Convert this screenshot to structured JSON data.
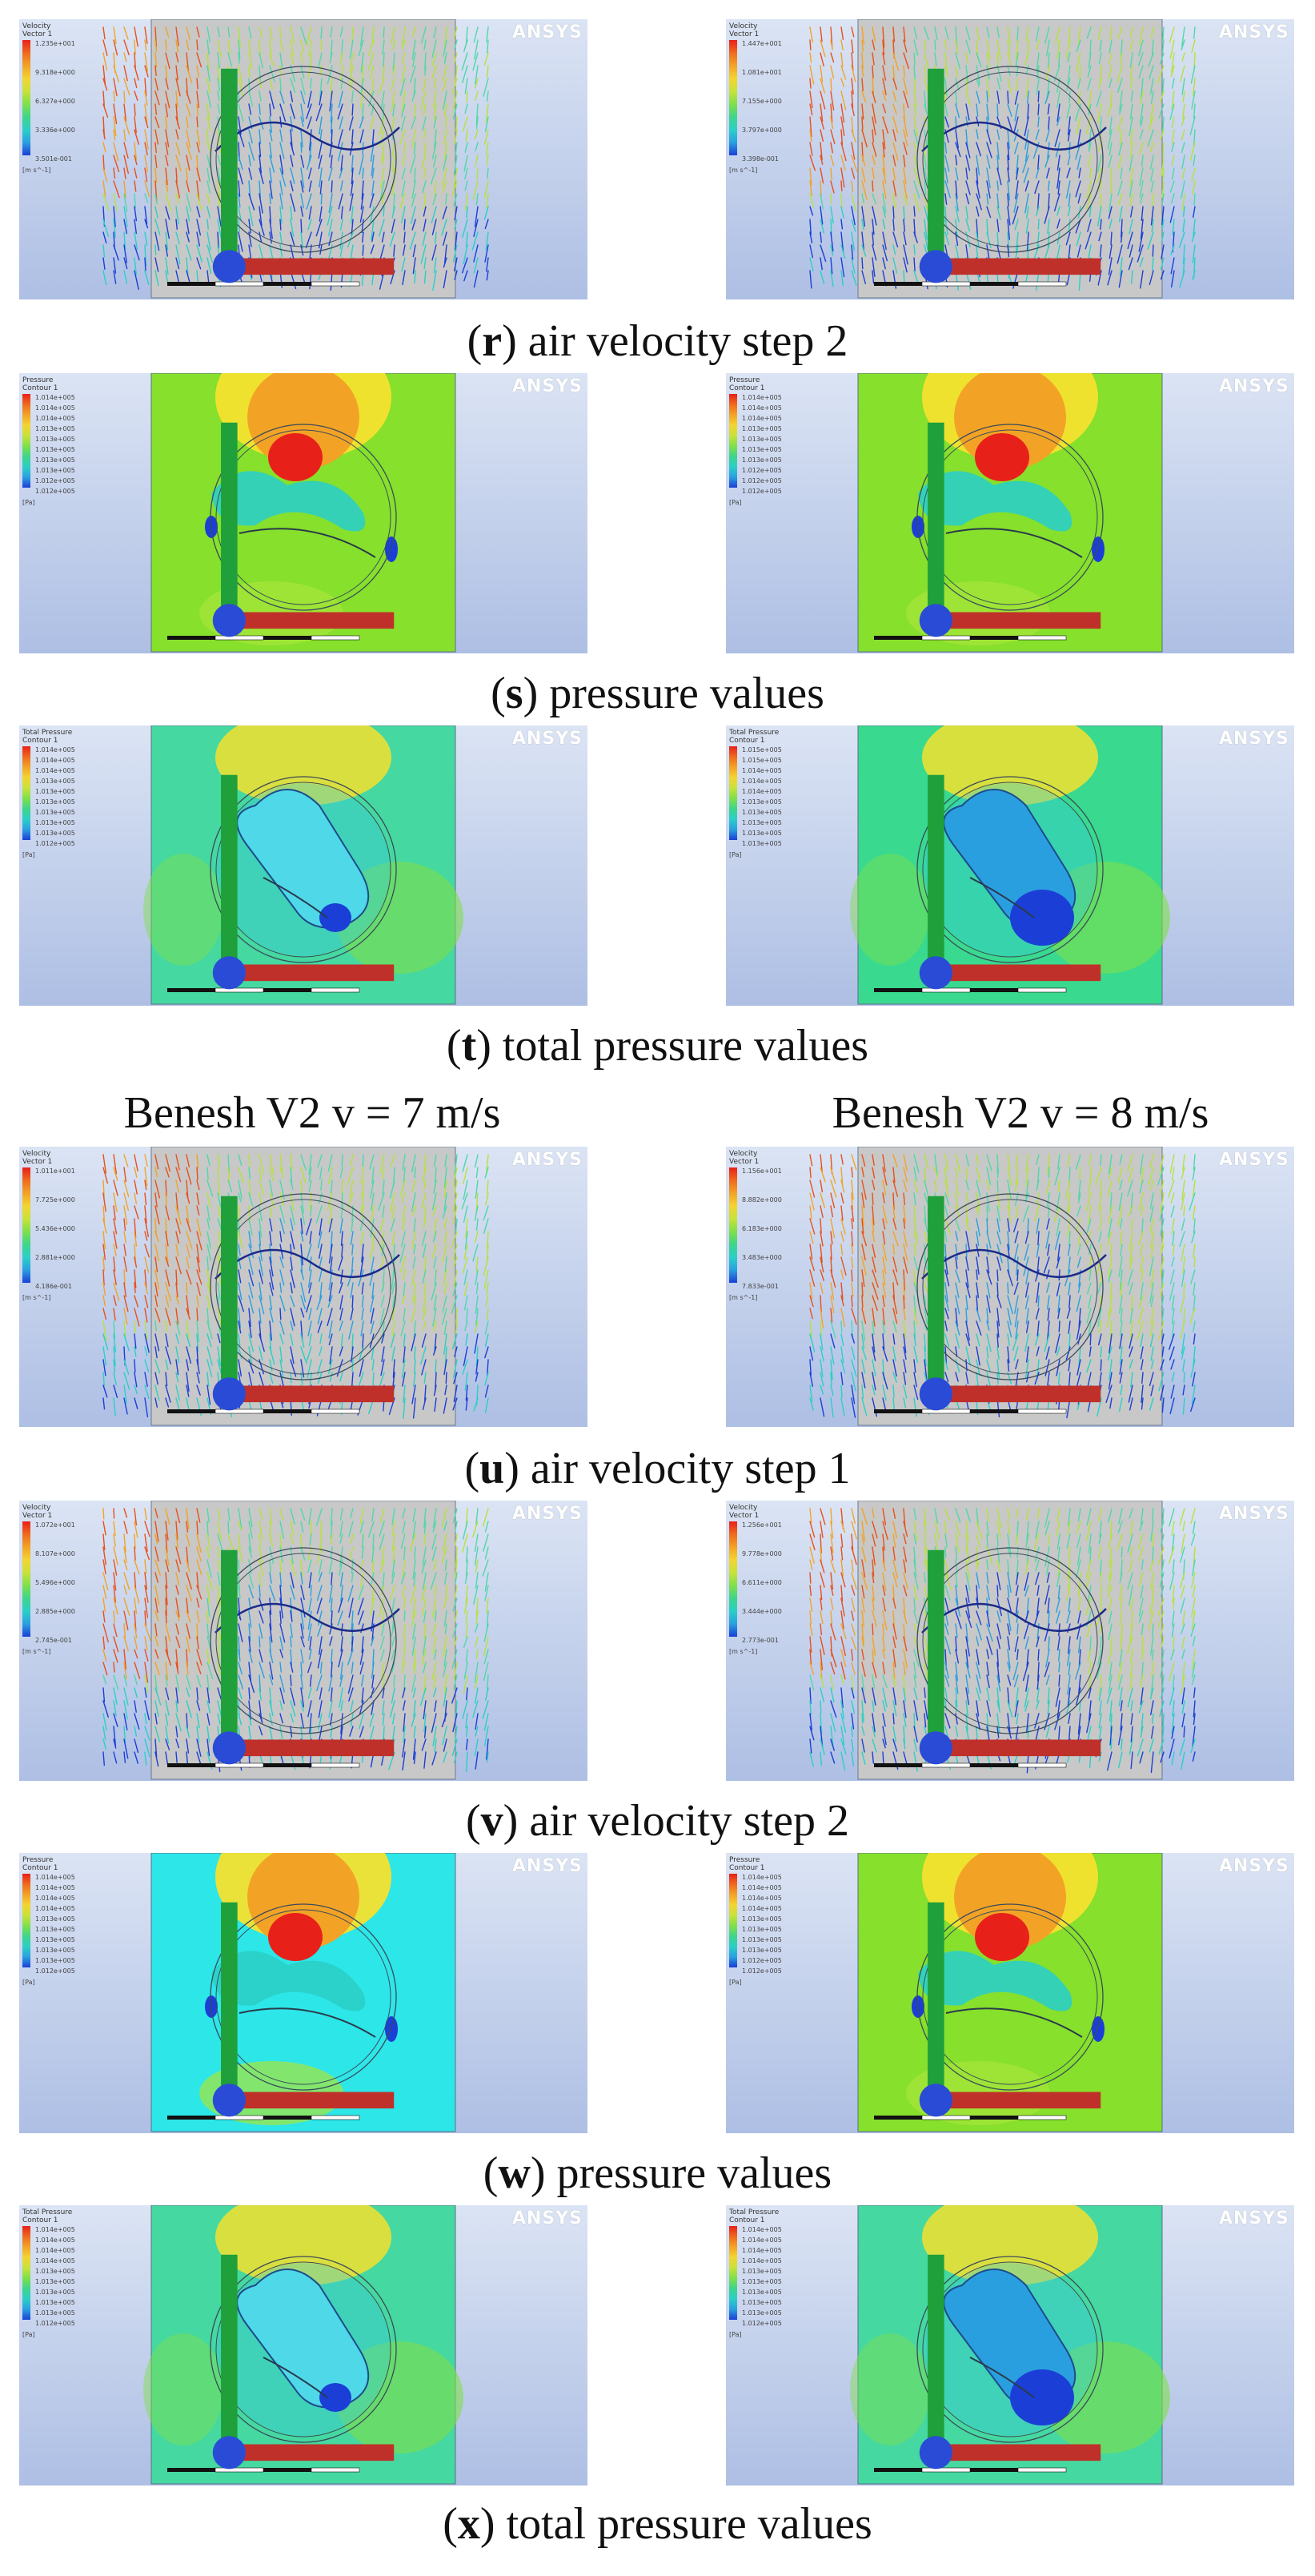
{
  "brand": "ANSYS",
  "case_titles": {
    "left": "Benesh V2 v = 7 m/s",
    "right": "Benesh V2 v = 8 m/s"
  },
  "rows": [
    {
      "letter": "r",
      "caption_text": " air velocity step 2",
      "type": "velocity",
      "left": {
        "legend_title": "Velocity",
        "legend_sub": "Vector 1",
        "unit": "[m s^-1]",
        "values": [
          "1.235e+001",
          "9.318e+000",
          "6.327e+000",
          "3.336e+000",
          "3.501e-001"
        ]
      },
      "right": {
        "legend_title": "Velocity",
        "legend_sub": "Vector 1",
        "unit": "[m s^-1]",
        "values": [
          "1.447e+001",
          "1.081e+001",
          "7.155e+000",
          "3.797e+000",
          "3.398e-001"
        ]
      }
    },
    {
      "letter": "s",
      "caption_text": " pressure values",
      "type": "pressure",
      "left": {
        "legend_title": "Pressure",
        "legend_sub": "Contour 1",
        "unit": "[Pa]",
        "values": [
          "1.014e+005",
          "1.014e+005",
          "1.014e+005",
          "1.013e+005",
          "1.013e+005",
          "1.013e+005",
          "1.013e+005",
          "1.013e+005",
          "1.012e+005",
          "1.012e+005"
        ]
      },
      "right": {
        "legend_title": "Pressure",
        "legend_sub": "Contour 1",
        "unit": "[Pa]",
        "values": [
          "1.014e+005",
          "1.014e+005",
          "1.014e+005",
          "1.013e+005",
          "1.013e+005",
          "1.013e+005",
          "1.013e+005",
          "1.012e+005",
          "1.012e+005",
          "1.012e+005"
        ]
      }
    },
    {
      "letter": "t",
      "caption_text": " total pressure values",
      "type": "total",
      "left": {
        "legend_title": "Total Pressure",
        "legend_sub": "Contour 1",
        "unit": "[Pa]",
        "values": [
          "1.014e+005",
          "1.014e+005",
          "1.014e+005",
          "1.013e+005",
          "1.013e+005",
          "1.013e+005",
          "1.013e+005",
          "1.013e+005",
          "1.013e+005",
          "1.012e+005"
        ]
      },
      "right": {
        "legend_title": "Total Pressure",
        "legend_sub": "Contour 1",
        "unit": "[Pa]",
        "values": [
          "1.015e+005",
          "1.015e+005",
          "1.014e+005",
          "1.014e+005",
          "1.014e+005",
          "1.013e+005",
          "1.013e+005",
          "1.013e+005",
          "1.013e+005",
          "1.013e+005"
        ]
      }
    },
    {
      "letter": "u",
      "caption_text": " air velocity step 1",
      "type": "velocity",
      "left": {
        "legend_title": "Velocity",
        "legend_sub": "Vector 1",
        "unit": "[m s^-1]",
        "values": [
          "1.011e+001",
          "7.725e+000",
          "5.436e+000",
          "2.881e+000",
          "4.186e-001"
        ]
      },
      "right": {
        "legend_title": "Velocity",
        "legend_sub": "Vector 1",
        "unit": "[m s^-1]",
        "values": [
          "1.156e+001",
          "8.882e+000",
          "6.183e+000",
          "3.483e+000",
          "7.833e-001"
        ]
      }
    },
    {
      "letter": "v",
      "caption_text": " air velocity step 2",
      "type": "velocity",
      "left": {
        "legend_title": "Velocity",
        "legend_sub": "Vector 1",
        "unit": "[m s^-1]",
        "values": [
          "1.072e+001",
          "8.107e+000",
          "5.496e+000",
          "2.885e+000",
          "2.745e-001"
        ]
      },
      "right": {
        "legend_title": "Velocity",
        "legend_sub": "Vector 1",
        "unit": "[m s^-1]",
        "values": [
          "1.256e+001",
          "9.778e+000",
          "6.611e+000",
          "3.444e+000",
          "2.773e-001"
        ]
      }
    },
    {
      "letter": "w",
      "caption_text": " pressure values",
      "type": "pressure",
      "left": {
        "legend_title": "Pressure",
        "legend_sub": "Contour 1",
        "unit": "[Pa]",
        "values": [
          "1.014e+005",
          "1.014e+005",
          "1.014e+005",
          "1.014e+005",
          "1.013e+005",
          "1.013e+005",
          "1.013e+005",
          "1.013e+005",
          "1.013e+005",
          "1.012e+005"
        ]
      },
      "right": {
        "legend_title": "Pressure",
        "legend_sub": "Contour 1",
        "unit": "[Pa]",
        "values": [
          "1.014e+005",
          "1.014e+005",
          "1.014e+005",
          "1.014e+005",
          "1.013e+005",
          "1.013e+005",
          "1.013e+005",
          "1.013e+005",
          "1.012e+005",
          "1.012e+005"
        ]
      }
    },
    {
      "letter": "x",
      "caption_text": " total pressure values",
      "type": "total",
      "left": {
        "legend_title": "Total Pressure",
        "legend_sub": "Contour 1",
        "unit": "[Pa]",
        "values": [
          "1.014e+005",
          "1.014e+005",
          "1.014e+005",
          "1.014e+005",
          "1.013e+005",
          "1.013e+005",
          "1.013e+005",
          "1.013e+005",
          "1.013e+005",
          "1.012e+005"
        ]
      },
      "right": {
        "legend_title": "Total Pressure",
        "legend_sub": "Contour 1",
        "unit": "[Pa]",
        "values": [
          "1.014e+005",
          "1.014e+005",
          "1.014e+005",
          "1.014e+005",
          "1.013e+005",
          "1.013e+005",
          "1.013e+005",
          "1.013e+005",
          "1.013e+005",
          "1.012e+005"
        ]
      }
    }
  ]
}
